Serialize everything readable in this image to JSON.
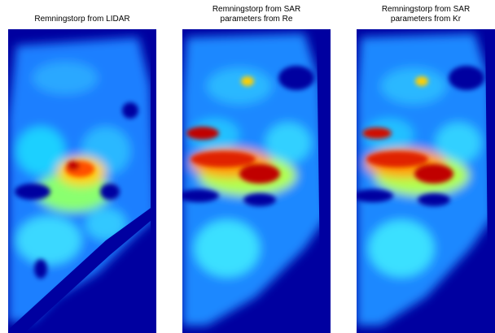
{
  "figure": {
    "panels": [
      {
        "id": "lidar",
        "title_lines": [
          "Remningstorp from LIDAR"
        ]
      },
      {
        "id": "sar-re",
        "title_lines": [
          "Remningstorp from SAR",
          "parameters from Re"
        ]
      },
      {
        "id": "sar-kr",
        "title_lines": [
          "Remningstorp from SAR",
          "parameters from Kr"
        ]
      }
    ],
    "colormap": "jet",
    "background_color": "#ffffff",
    "outside_area_color": "#0000a0"
  }
}
